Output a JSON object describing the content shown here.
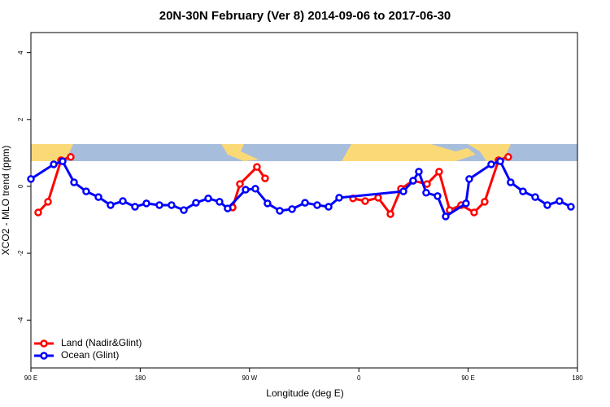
{
  "chart_data": {
    "type": "line",
    "title": "20N-30N February (Ver 8)   2014-09-06 to 2017-06-30",
    "x_label": "Longitude (deg E)",
    "y_label": "XCO2 - MLO trend (ppm)",
    "xlim": [
      90,
      540
    ],
    "ylim": [
      -5.43,
      4.6
    ],
    "xticks": [
      {
        "value": 90,
        "label": "90 E"
      },
      {
        "value": 180,
        "label": "180"
      },
      {
        "value": 270,
        "label": "90 W"
      },
      {
        "value": 360,
        "label": "0"
      },
      {
        "value": 450,
        "label": "90 E"
      },
      {
        "value": 540,
        "label": "180"
      }
    ],
    "yticks": [
      -4,
      -2,
      0,
      2,
      4
    ],
    "legend": "bottom-left",
    "series": [
      {
        "name": "Land (Nadir&Glint)",
        "color": "#ff0000",
        "x": [
          96,
          104.1,
          114.8,
          122.8,
          247.4,
          256.1,
          262.1,
          276.1,
          282.8,
          347.1,
          355.2,
          365.2,
          375.9,
          386,
          394.7,
          404.7,
          416.1,
          426.1,
          434.8,
          444.2,
          454.9,
          463.6,
          475,
          483
        ],
        "values": [
          -0.78,
          -0.46,
          0.78,
          0.88,
          null,
          -0.63,
          0.07,
          0.58,
          0.24,
          null,
          -0.36,
          -0.44,
          -0.34,
          -0.83,
          -0.07,
          0.17,
          0.07,
          0.44,
          -0.71,
          -0.56,
          -0.78,
          -0.46,
          0.78,
          0.88
        ]
      },
      {
        "name": "Ocean (Glint)",
        "color": "#0000ff",
        "x": [
          90,
          108.8,
          116.1,
          125.5,
          135.5,
          145.6,
          155.6,
          165.7,
          175.7,
          185.1,
          195.8,
          205.8,
          215.9,
          225.9,
          236,
          245.3,
          252,
          266.8,
          274.8,
          284.8,
          294.9,
          305,
          315.7,
          325.7,
          335.1,
          343.8,
          396.7,
          404.7,
          409.4,
          415.4,
          424.8,
          431.5,
          448.2,
          450.9,
          469,
          476.4,
          485,
          495.1,
          505.2,
          515.2,
          525.2,
          534.6
        ],
        "values": [
          0.22,
          0.66,
          0.75,
          0.12,
          -0.15,
          -0.32,
          -0.56,
          -0.44,
          -0.61,
          -0.51,
          -0.56,
          -0.56,
          -0.71,
          -0.49,
          -0.36,
          -0.46,
          -0.66,
          -0.1,
          -0.07,
          -0.51,
          -0.73,
          -0.68,
          -0.49,
          -0.56,
          -0.61,
          -0.34,
          -0.15,
          0.17,
          0.44,
          -0.19,
          -0.29,
          -0.9,
          -0.51,
          0.22,
          0.66,
          0.75,
          0.12,
          -0.15,
          -0.32,
          -0.56,
          -0.44,
          -0.61
        ]
      }
    ]
  }
}
